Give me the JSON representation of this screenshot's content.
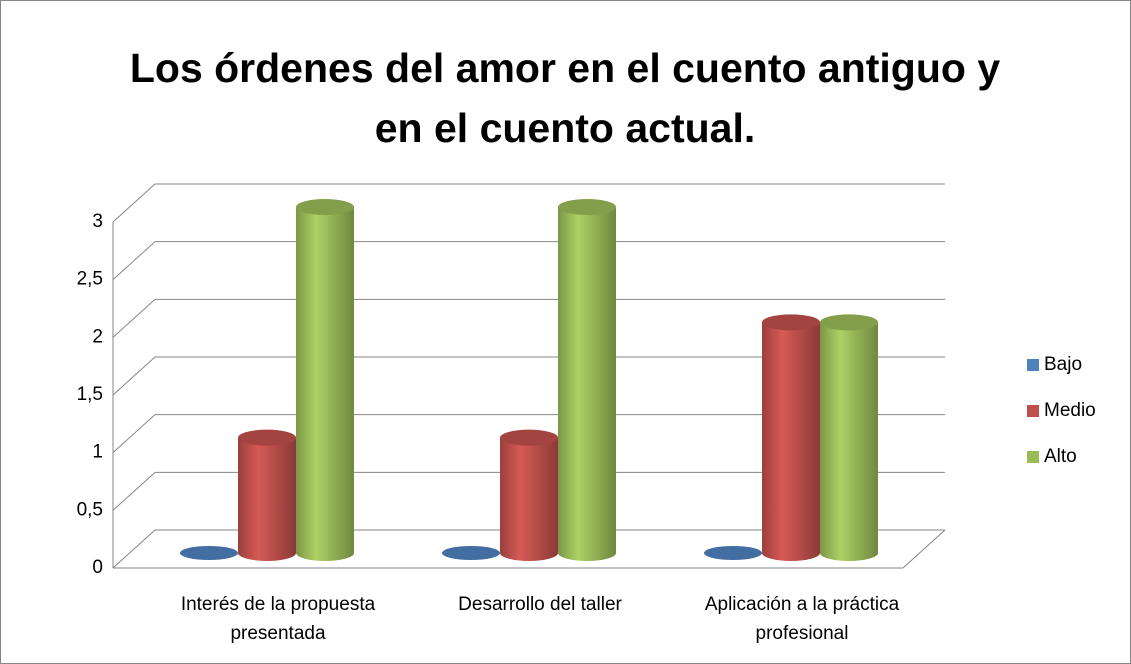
{
  "chart_data": {
    "type": "bar3d",
    "title": "Los órdenes del amor en el cuento antiguo y en el cuento actual.",
    "categories": [
      "Interés de la propuesta presentada",
      "Desarrollo del taller",
      "Aplicación a la práctica profesional"
    ],
    "series": [
      {
        "name": "Bajo",
        "color": "#4f81bd",
        "values": [
          0,
          0,
          0
        ]
      },
      {
        "name": "Medio",
        "color": "#c0504d",
        "values": [
          1,
          1,
          2
        ]
      },
      {
        "name": "Alto",
        "color": "#9bbb59",
        "values": [
          3,
          3,
          2
        ]
      }
    ],
    "ylim": [
      0,
      3
    ],
    "yticks": [
      0,
      {
        "value": 0.5,
        "label": "0,5"
      },
      1,
      {
        "value": 1.5,
        "label": "1,5"
      },
      2,
      {
        "value": 2.5,
        "label": "2,5"
      },
      3
    ],
    "grid": true,
    "legend": "right"
  }
}
